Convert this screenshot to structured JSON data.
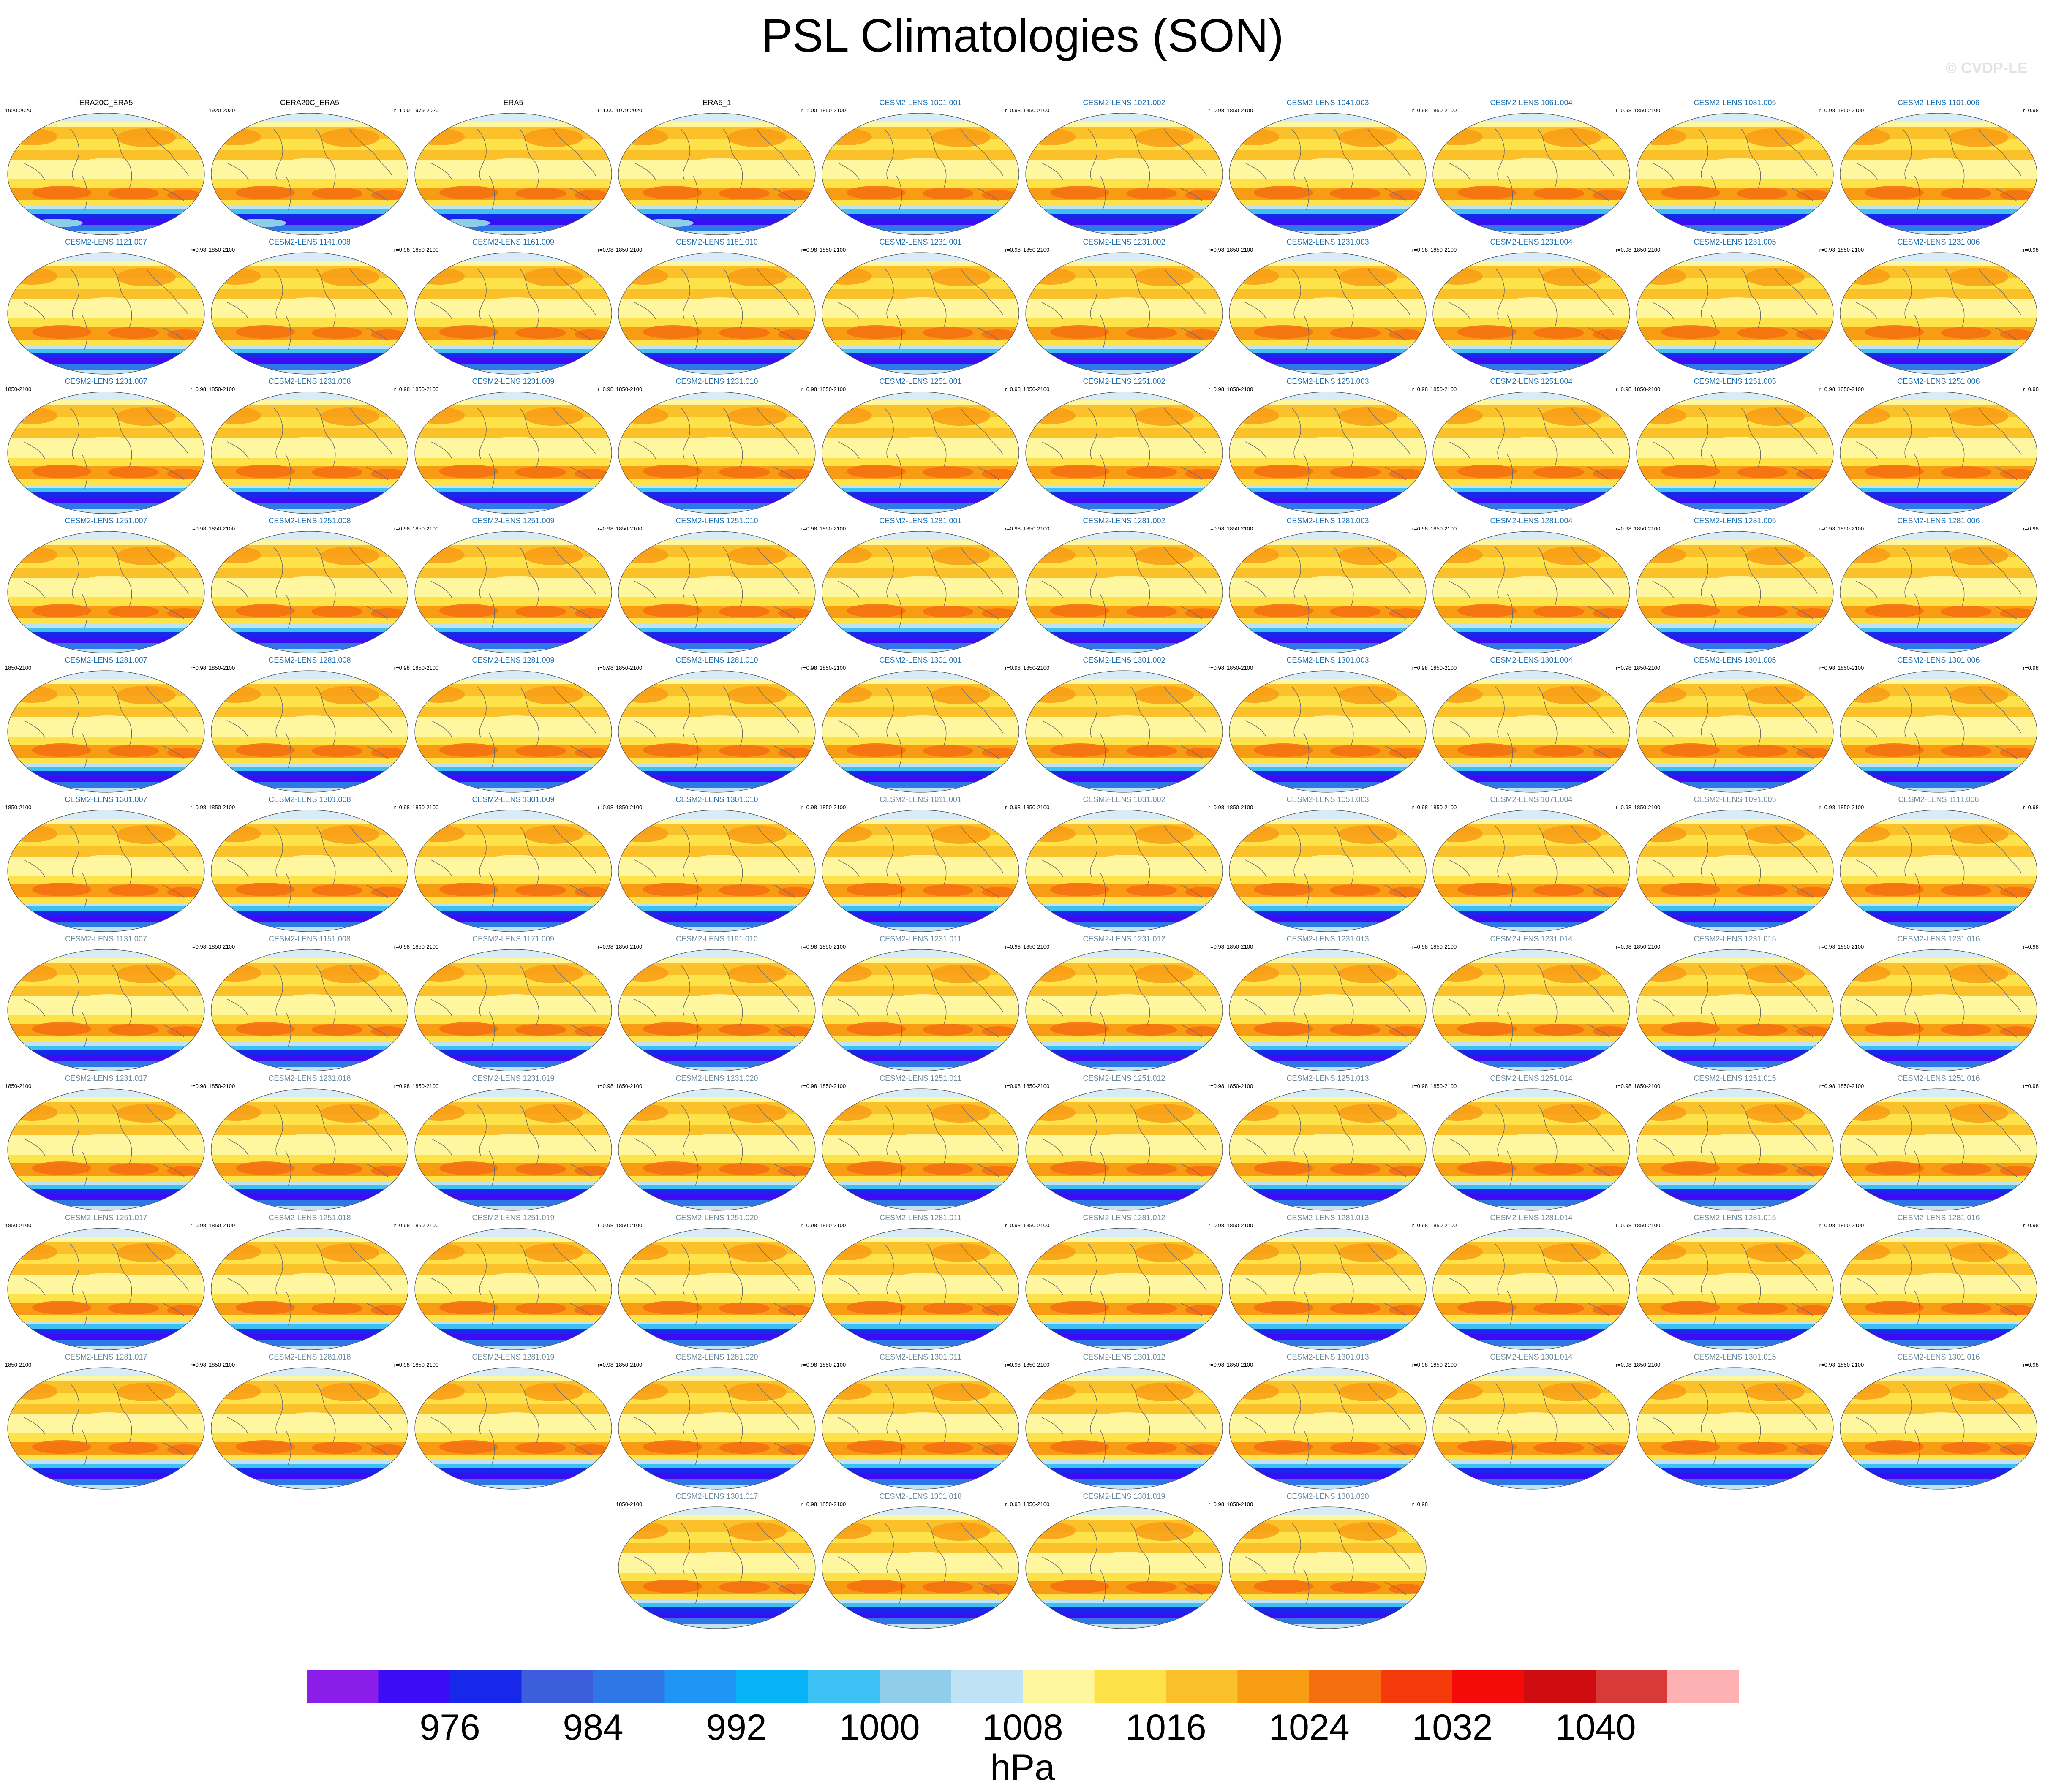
{
  "title": "PSL Climatologies (SON)",
  "watermark": "© CVDP-LE",
  "colors": {
    "obs_title": "#000000",
    "model_title_a": "#1f6fb3",
    "model_title_b": "#6c8a9c"
  },
  "colorbar": {
    "units": "hPa",
    "labels": [
      "976",
      "984",
      "992",
      "1000",
      "1008",
      "1016",
      "1024",
      "1032",
      "1040"
    ],
    "colors": [
      "#8a1de8",
      "#3b0cf5",
      "#1828ea",
      "#3c5ddc",
      "#2f76e6",
      "#1f95f5",
      "#08b2f6",
      "#3dc1f5",
      "#8fcdeb",
      "#bfe2f4",
      "#fff7a0",
      "#fde24a",
      "#fbc12a",
      "#f89c14",
      "#f56e0f",
      "#f53a0b",
      "#f50a0a",
      "#cf0d10",
      "#d83a3a",
      "#fdb1b3"
    ]
  },
  "panels": [
    {
      "title": "ERA20C_ERA5",
      "left": "1920-2020",
      "right": "",
      "style": "obs"
    },
    {
      "title": "CERA20C_ERA5",
      "left": "1920-2020",
      "right": "r=1.00",
      "style": "obs"
    },
    {
      "title": "ERA5",
      "left": "1979-2020",
      "right": "r=1.00",
      "style": "obs"
    },
    {
      "title": "ERA5_1",
      "left": "1979-2020",
      "right": "r=1.00",
      "style": "obs"
    },
    {
      "title": "CESM2-LENS 1001.001",
      "left": "1850-2100",
      "right": "r=0.98",
      "style": "a"
    },
    {
      "title": "CESM2-LENS 1021.002",
      "left": "1850-2100",
      "right": "r=0.98",
      "style": "a"
    },
    {
      "title": "CESM2-LENS 1041.003",
      "left": "1850-2100",
      "right": "r=0.98",
      "style": "a"
    },
    {
      "title": "CESM2-LENS 1061.004",
      "left": "1850-2100",
      "right": "r=0.98",
      "style": "a"
    },
    {
      "title": "CESM2-LENS 1081.005",
      "left": "1850-2100",
      "right": "r=0.98",
      "style": "a"
    },
    {
      "title": "CESM2-LENS 1101.006",
      "left": "1850-2100",
      "right": "r=0.98",
      "style": "a"
    },
    {
      "title": "CESM2-LENS 1121.007",
      "left": "",
      "right": "r=0.98",
      "style": "a"
    },
    {
      "title": "CESM2-LENS 1141.008",
      "left": "1850-2100",
      "right": "r=0.98",
      "style": "a"
    },
    {
      "title": "CESM2-LENS 1161.009",
      "left": "1850-2100",
      "right": "r=0.98",
      "style": "a"
    },
    {
      "title": "CESM2-LENS 1181.010",
      "left": "1850-2100",
      "right": "r=0.98",
      "style": "a"
    },
    {
      "title": "CESM2-LENS 1231.001",
      "left": "1850-2100",
      "right": "r=0.98",
      "style": "a"
    },
    {
      "title": "CESM2-LENS 1231.002",
      "left": "1850-2100",
      "right": "r=0.98",
      "style": "a"
    },
    {
      "title": "CESM2-LENS 1231.003",
      "left": "1850-2100",
      "right": "r=0.98",
      "style": "a"
    },
    {
      "title": "CESM2-LENS 1231.004",
      "left": "1850-2100",
      "right": "r=0.98",
      "style": "a"
    },
    {
      "title": "CESM2-LENS 1231.005",
      "left": "1850-2100",
      "right": "r=0.98",
      "style": "a"
    },
    {
      "title": "CESM2-LENS 1231.006",
      "left": "1850-2100",
      "right": "r=0.98",
      "style": "a"
    },
    {
      "title": "CESM2-LENS 1231.007",
      "left": "1850-2100",
      "right": "r=0.98",
      "style": "a"
    },
    {
      "title": "CESM2-LENS 1231.008",
      "left": "1850-2100",
      "right": "r=0.98",
      "style": "a"
    },
    {
      "title": "CESM2-LENS 1231.009",
      "left": "1850-2100",
      "right": "r=0.98",
      "style": "a"
    },
    {
      "title": "CESM2-LENS 1231.010",
      "left": "1850-2100",
      "right": "r=0.98",
      "style": "a"
    },
    {
      "title": "CESM2-LENS 1251.001",
      "left": "1850-2100",
      "right": "r=0.98",
      "style": "a"
    },
    {
      "title": "CESM2-LENS 1251.002",
      "left": "1850-2100",
      "right": "r=0.98",
      "style": "a"
    },
    {
      "title": "CESM2-LENS 1251.003",
      "left": "1850-2100",
      "right": "r=0.98",
      "style": "a"
    },
    {
      "title": "CESM2-LENS 1251.004",
      "left": "1850-2100",
      "right": "r=0.98",
      "style": "a"
    },
    {
      "title": "CESM2-LENS 1251.005",
      "left": "1850-2100",
      "right": "r=0.98",
      "style": "a"
    },
    {
      "title": "CESM2-LENS 1251.006",
      "left": "1850-2100",
      "right": "r=0.98",
      "style": "a"
    },
    {
      "title": "CESM2-LENS 1251.007",
      "left": "",
      "right": "r=0.98",
      "style": "a"
    },
    {
      "title": "CESM2-LENS 1251.008",
      "left": "1850-2100",
      "right": "r=0.98",
      "style": "a"
    },
    {
      "title": "CESM2-LENS 1251.009",
      "left": "1850-2100",
      "right": "r=0.98",
      "style": "a"
    },
    {
      "title": "CESM2-LENS 1251.010",
      "left": "1850-2100",
      "right": "r=0.98",
      "style": "a"
    },
    {
      "title": "CESM2-LENS 1281.001",
      "left": "1850-2100",
      "right": "r=0.98",
      "style": "a"
    },
    {
      "title": "CESM2-LENS 1281.002",
      "left": "1850-2100",
      "right": "r=0.98",
      "style": "a"
    },
    {
      "title": "CESM2-LENS 1281.003",
      "left": "1850-2100",
      "right": "r=0.98",
      "style": "a"
    },
    {
      "title": "CESM2-LENS 1281.004",
      "left": "1850-2100",
      "right": "r=0.98",
      "style": "a"
    },
    {
      "title": "CESM2-LENS 1281.005",
      "left": "1850-2100",
      "right": "r=0.98",
      "style": "a"
    },
    {
      "title": "CESM2-LENS 1281.006",
      "left": "1850-2100",
      "right": "r=0.98",
      "style": "a"
    },
    {
      "title": "CESM2-LENS 1281.007",
      "left": "1850-2100",
      "right": "r=0.98",
      "style": "a"
    },
    {
      "title": "CESM2-LENS 1281.008",
      "left": "1850-2100",
      "right": "r=0.98",
      "style": "a"
    },
    {
      "title": "CESM2-LENS 1281.009",
      "left": "1850-2100",
      "right": "r=0.98",
      "style": "a"
    },
    {
      "title": "CESM2-LENS 1281.010",
      "left": "1850-2100",
      "right": "r=0.98",
      "style": "a"
    },
    {
      "title": "CESM2-LENS 1301.001",
      "left": "1850-2100",
      "right": "r=0.98",
      "style": "a"
    },
    {
      "title": "CESM2-LENS 1301.002",
      "left": "1850-2100",
      "right": "r=0.98",
      "style": "a"
    },
    {
      "title": "CESM2-LENS 1301.003",
      "left": "1850-2100",
      "right": "r=0.98",
      "style": "a"
    },
    {
      "title": "CESM2-LENS 1301.004",
      "left": "1850-2100",
      "right": "r=0.98",
      "style": "a"
    },
    {
      "title": "CESM2-LENS 1301.005",
      "left": "1850-2100",
      "right": "r=0.98",
      "style": "a"
    },
    {
      "title": "CESM2-LENS 1301.006",
      "left": "1850-2100",
      "right": "r=0.98",
      "style": "a"
    },
    {
      "title": "CESM2-LENS 1301.007",
      "left": "1850-2100",
      "right": "r=0.98",
      "style": "a"
    },
    {
      "title": "CESM2-LENS 1301.008",
      "left": "1850-2100",
      "right": "r=0.98",
      "style": "a"
    },
    {
      "title": "CESM2-LENS 1301.009",
      "left": "1850-2100",
      "right": "r=0.98",
      "style": "a"
    },
    {
      "title": "CESM2-LENS 1301.010",
      "left": "1850-2100",
      "right": "r=0.98",
      "style": "a"
    },
    {
      "title": "CESM2-LENS 1011.001",
      "left": "1850-2100",
      "right": "r=0.98",
      "style": "b"
    },
    {
      "title": "CESM2-LENS 1031.002",
      "left": "1850-2100",
      "right": "r=0.98",
      "style": "b"
    },
    {
      "title": "CESM2-LENS 1051.003",
      "left": "1850-2100",
      "right": "r=0.98",
      "style": "b"
    },
    {
      "title": "CESM2-LENS 1071.004",
      "left": "1850-2100",
      "right": "r=0.98",
      "style": "b"
    },
    {
      "title": "CESM2-LENS 1091.005",
      "left": "1850-2100",
      "right": "r=0.98",
      "style": "b"
    },
    {
      "title": "CESM2-LENS 1111.006",
      "left": "1850-2100",
      "right": "r=0.98",
      "style": "b"
    },
    {
      "title": "CESM2-LENS 1131.007",
      "left": "",
      "right": "r=0.98",
      "style": "b"
    },
    {
      "title": "CESM2-LENS 1151.008",
      "left": "1850-2100",
      "right": "r=0.98",
      "style": "b"
    },
    {
      "title": "CESM2-LENS 1171.009",
      "left": "1850-2100",
      "right": "r=0.98",
      "style": "b"
    },
    {
      "title": "CESM2-LENS 1191.010",
      "left": "1850-2100",
      "right": "r=0.98",
      "style": "b"
    },
    {
      "title": "CESM2-LENS 1231.011",
      "left": "1850-2100",
      "right": "r=0.98",
      "style": "b"
    },
    {
      "title": "CESM2-LENS 1231.012",
      "left": "1850-2100",
      "right": "r=0.98",
      "style": "b"
    },
    {
      "title": "CESM2-LENS 1231.013",
      "left": "1850-2100",
      "right": "r=0.98",
      "style": "b"
    },
    {
      "title": "CESM2-LENS 1231.014",
      "left": "1850-2100",
      "right": "r=0.98",
      "style": "b"
    },
    {
      "title": "CESM2-LENS 1231.015",
      "left": "1850-2100",
      "right": "r=0.98",
      "style": "b"
    },
    {
      "title": "CESM2-LENS 1231.016",
      "left": "1850-2100",
      "right": "r=0.98",
      "style": "b"
    },
    {
      "title": "CESM2-LENS 1231.017",
      "left": "1850-2100",
      "right": "r=0.98",
      "style": "b"
    },
    {
      "title": "CESM2-LENS 1231.018",
      "left": "1850-2100",
      "right": "r=0.98",
      "style": "b"
    },
    {
      "title": "CESM2-LENS 1231.019",
      "left": "1850-2100",
      "right": "r=0.98",
      "style": "b"
    },
    {
      "title": "CESM2-LENS 1231.020",
      "left": "1850-2100",
      "right": "r=0.98",
      "style": "b"
    },
    {
      "title": "CESM2-LENS 1251.011",
      "left": "1850-2100",
      "right": "r=0.98",
      "style": "b"
    },
    {
      "title": "CESM2-LENS 1251.012",
      "left": "1850-2100",
      "right": "r=0.98",
      "style": "b"
    },
    {
      "title": "CESM2-LENS 1251.013",
      "left": "1850-2100",
      "right": "r=0.98",
      "style": "b"
    },
    {
      "title": "CESM2-LENS 1251.014",
      "left": "1850-2100",
      "right": "r=0.98",
      "style": "b"
    },
    {
      "title": "CESM2-LENS 1251.015",
      "left": "1850-2100",
      "right": "r=0.98",
      "style": "b"
    },
    {
      "title": "CESM2-LENS 1251.016",
      "left": "1850-2100",
      "right": "r=0.98",
      "style": "b"
    },
    {
      "title": "CESM2-LENS 1251.017",
      "left": "1850-2100",
      "right": "r=0.98",
      "style": "b"
    },
    {
      "title": "CESM2-LENS 1251.018",
      "left": "1850-2100",
      "right": "r=0.98",
      "style": "b"
    },
    {
      "title": "CESM2-LENS 1251.019",
      "left": "1850-2100",
      "right": "r=0.98",
      "style": "b"
    },
    {
      "title": "CESM2-LENS 1251.020",
      "left": "1850-2100",
      "right": "r=0.98",
      "style": "b"
    },
    {
      "title": "CESM2-LENS 1281.011",
      "left": "1850-2100",
      "right": "r=0.98",
      "style": "b"
    },
    {
      "title": "CESM2-LENS 1281.012",
      "left": "1850-2100",
      "right": "r=0.98",
      "style": "b"
    },
    {
      "title": "CESM2-LENS 1281.013",
      "left": "1850-2100",
      "right": "r=0.98",
      "style": "b"
    },
    {
      "title": "CESM2-LENS 1281.014",
      "left": "1850-2100",
      "right": "r=0.98",
      "style": "b"
    },
    {
      "title": "CESM2-LENS 1281.015",
      "left": "1850-2100",
      "right": "r=0.98",
      "style": "b"
    },
    {
      "title": "CESM2-LENS 1281.016",
      "left": "1850-2100",
      "right": "r=0.98",
      "style": "b"
    },
    {
      "title": "CESM2-LENS 1281.017",
      "left": "1850-2100",
      "right": "r=0.98",
      "style": "b"
    },
    {
      "title": "CESM2-LENS 1281.018",
      "left": "1850-2100",
      "right": "r=0.98",
      "style": "b"
    },
    {
      "title": "CESM2-LENS 1281.019",
      "left": "1850-2100",
      "right": "r=0.98",
      "style": "b"
    },
    {
      "title": "CESM2-LENS 1281.020",
      "left": "1850-2100",
      "right": "r=0.98",
      "style": "b"
    },
    {
      "title": "CESM2-LENS 1301.011",
      "left": "1850-2100",
      "right": "r=0.98",
      "style": "b"
    },
    {
      "title": "CESM2-LENS 1301.012",
      "left": "1850-2100",
      "right": "r=0.98",
      "style": "b"
    },
    {
      "title": "CESM2-LENS 1301.013",
      "left": "1850-2100",
      "right": "r=0.98",
      "style": "b"
    },
    {
      "title": "CESM2-LENS 1301.014",
      "left": "1850-2100",
      "right": "r=0.98",
      "style": "b"
    },
    {
      "title": "CESM2-LENS 1301.015",
      "left": "1850-2100",
      "right": "r=0.98",
      "style": "b"
    },
    {
      "title": "CESM2-LENS 1301.016",
      "left": "1850-2100",
      "right": "r=0.98",
      "style": "b"
    },
    {
      "title": "CESM2-LENS 1301.017",
      "left": "1850-2100",
      "right": "r=0.98",
      "style": "b"
    },
    {
      "title": "CESM2-LENS 1301.018",
      "left": "1850-2100",
      "right": "r=0.98",
      "style": "b"
    },
    {
      "title": "CESM2-LENS 1301.019",
      "left": "1850-2100",
      "right": "r=0.98",
      "style": "b"
    },
    {
      "title": "CESM2-LENS 1301.020",
      "left": "1850-2100",
      "right": "r=0.98",
      "style": "b"
    }
  ]
}
